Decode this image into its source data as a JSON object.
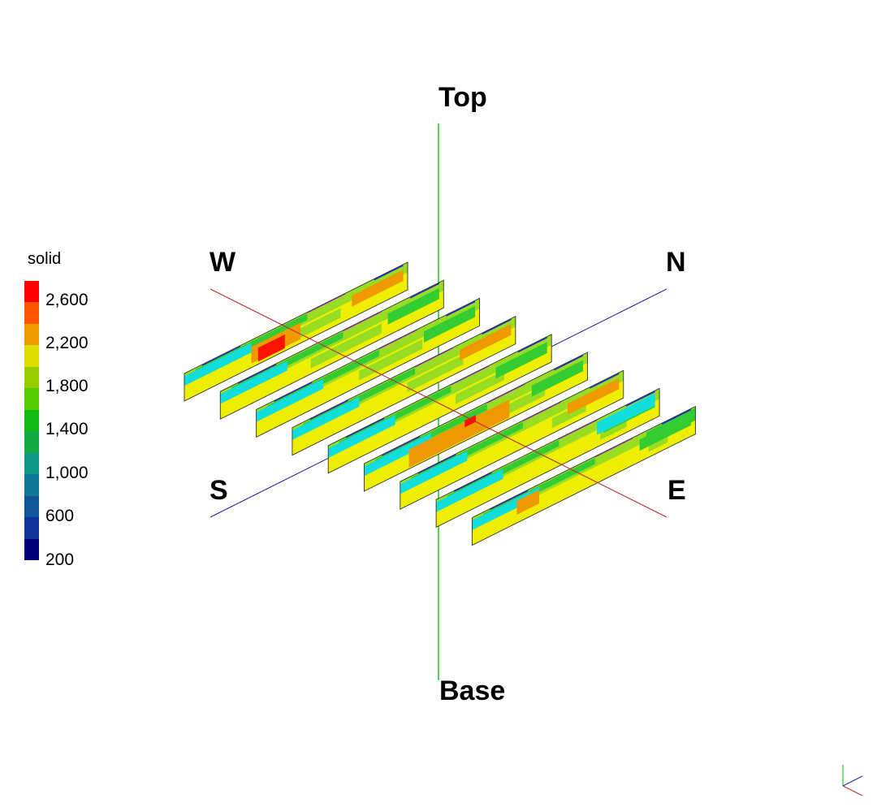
{
  "axes": {
    "top": "Top",
    "base": "Base",
    "west": "W",
    "north": "N",
    "south": "S",
    "east": "E",
    "vertical_color": "#22cc22",
    "we_color": "#c03030",
    "sn_color": "#3030b0"
  },
  "legend": {
    "title": "solid",
    "ticks": [
      "2,600",
      "2,200",
      "1,800",
      "1,400",
      "1,000",
      "600",
      "200"
    ],
    "colors": [
      "#ff0000",
      "#ff5500",
      "#ee9900",
      "#dddd00",
      "#99cc00",
      "#55cc00",
      "#11bb11",
      "#11aa44",
      "#119988",
      "#117799",
      "#115599",
      "#113399",
      "#000077"
    ]
  },
  "panels": {
    "count": 9,
    "palette": {
      "yellow": "#eeee00",
      "lightgreen": "#99dd22",
      "green": "#33cc33",
      "cyan": "#11dddd",
      "orange": "#ee9900",
      "red": "#ff1100",
      "blue": "#2233cc",
      "magenta": "#bb33cc"
    }
  }
}
